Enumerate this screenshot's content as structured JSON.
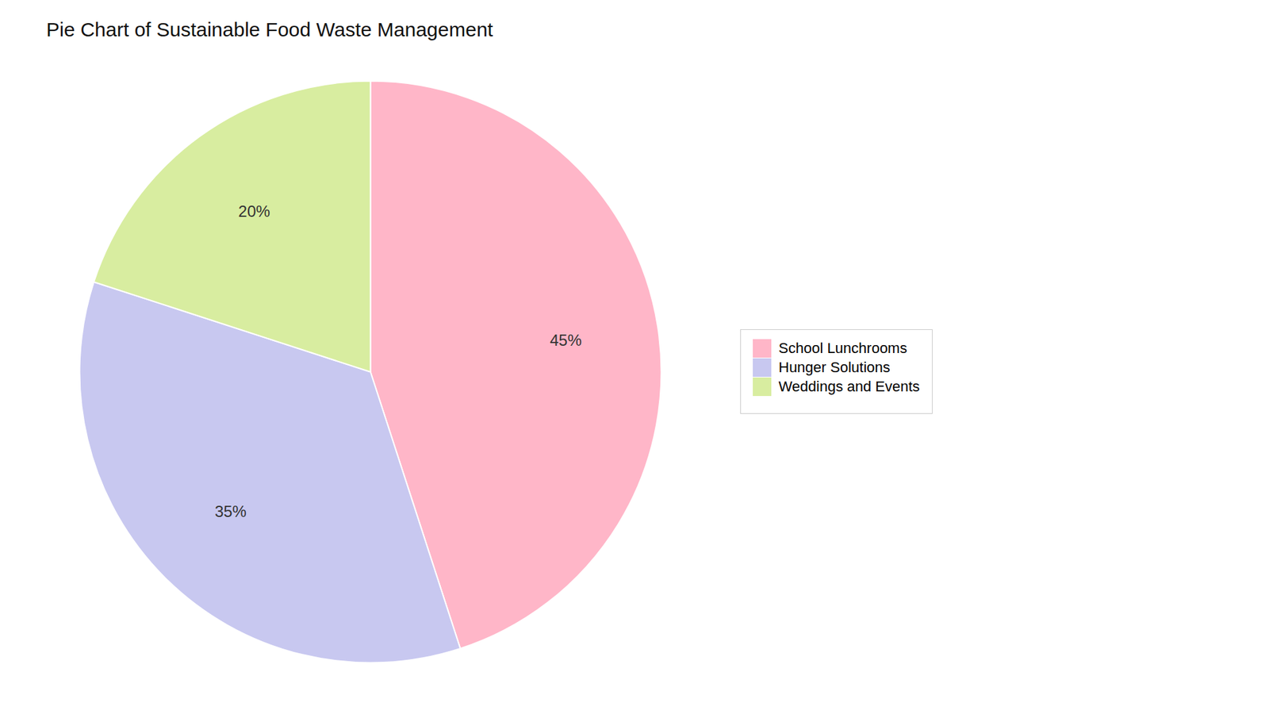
{
  "chart_data": {
    "type": "pie",
    "title": "Pie Chart of Sustainable Food Waste Management",
    "categories": [
      "School Lunchrooms",
      "Hunger Solutions",
      "Weddings and Events"
    ],
    "values": [
      45,
      35,
      20
    ],
    "value_labels": [
      "45%",
      "35%",
      "20%"
    ],
    "colors": [
      "#FFB6C8",
      "#C8C8F0",
      "#D8EDA0"
    ],
    "data_labels": true,
    "legend": "right"
  }
}
